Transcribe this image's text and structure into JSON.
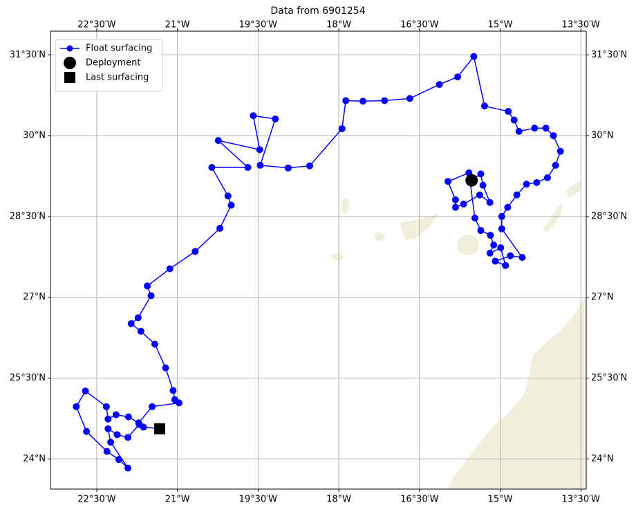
{
  "chart_data": {
    "type": "line",
    "title": "Data from 6901254",
    "xlim": [
      -23.36,
      -13.4
    ],
    "ylim": [
      23.44,
      31.94
    ],
    "xticks": [
      {
        "value": -22.5,
        "label": "22°30′W"
      },
      {
        "value": -21,
        "label": "21°W"
      },
      {
        "value": -19.5,
        "label": "19°30′W"
      },
      {
        "value": -18,
        "label": "18°W"
      },
      {
        "value": -16.5,
        "label": "16°30′W"
      },
      {
        "value": -15,
        "label": "15°W"
      },
      {
        "value": -13.5,
        "label": "13°30′W"
      }
    ],
    "yticks": [
      {
        "value": 24,
        "label": "24°N"
      },
      {
        "value": 25.5,
        "label": "25°30′N"
      },
      {
        "value": 27,
        "label": "27°N"
      },
      {
        "value": 28.5,
        "label": "28°30′N"
      },
      {
        "value": 30,
        "label": "30°N"
      },
      {
        "value": 31.5,
        "label": "31°30′N"
      }
    ],
    "grid": true,
    "legend": "upper left",
    "series": [
      {
        "name": "Float surfacing",
        "color": "#0000ff",
        "x": [
          -15.53,
          -15.36,
          -15.32,
          -15.19,
          -15.38,
          -15.68,
          -15.83,
          -15.83,
          -15.97,
          -15.58,
          -15.47,
          -15.36,
          -15.18,
          -15.12,
          -15.19,
          -14.99,
          -14.9,
          -15.09,
          -14.81,
          -14.59,
          -14.97,
          -14.97,
          -14.86,
          -14.69,
          -14.51,
          -14.32,
          -14.12,
          -13.97,
          -13.88,
          -14.01,
          -14.15,
          -14.36,
          -14.65,
          -14.74,
          -14.85,
          -15.29,
          -15.49,
          -15.79,
          -16.13,
          -16.68,
          -17.15,
          -17.55,
          -17.87,
          -17.94,
          -18.54,
          -18.94,
          -19.46,
          -19.18,
          -19.59,
          -19.47,
          -20.24,
          -19.69,
          -20.36,
          -20.06,
          -20.0,
          -20.21,
          -20.67,
          -21.14,
          -21.56,
          -21.49,
          -21.73,
          -21.86,
          -21.68,
          -21.42,
          -21.22,
          -21.08,
          -21.05,
          -20.97,
          -21.47,
          -21.72,
          -21.91,
          -22.14,
          -22.29,
          -22.32,
          -22.71,
          -22.88,
          -22.69,
          -22.31,
          -22.09,
          -21.92,
          -22.24,
          -22.29,
          -22.12,
          -21.92,
          -21.71,
          -21.63,
          -21.33
        ],
        "values": [
          29.17,
          29.29,
          29.08,
          28.76,
          28.9,
          28.73,
          28.67,
          28.81,
          29.15,
          29.31,
          28.47,
          28.24,
          28.15,
          27.97,
          27.82,
          27.92,
          27.59,
          27.67,
          27.77,
          27.74,
          28.27,
          28.5,
          28.67,
          28.9,
          29.1,
          29.13,
          29.22,
          29.45,
          29.71,
          30.0,
          30.14,
          30.14,
          30.08,
          30.29,
          30.45,
          30.55,
          31.47,
          31.09,
          30.95,
          30.69,
          30.65,
          30.64,
          30.65,
          30.13,
          29.44,
          29.4,
          29.45,
          30.31,
          30.37,
          29.74,
          29.91,
          29.41,
          29.41,
          28.88,
          28.71,
          28.28,
          27.85,
          27.53,
          27.21,
          27.03,
          26.62,
          26.51,
          26.37,
          26.13,
          25.69,
          25.27,
          25.1,
          25.04,
          24.97,
          24.67,
          24.78,
          24.82,
          24.74,
          24.97,
          25.26,
          24.97,
          24.51,
          24.14,
          23.99,
          23.83,
          24.31,
          24.56,
          24.45,
          24.4,
          24.64,
          24.59,
          24.56
        ]
      }
    ],
    "markers": [
      {
        "name": "Deployment",
        "x": -15.53,
        "y": 29.17,
        "color": "#000000",
        "shape": "circle"
      },
      {
        "name": "Last surfacing",
        "x": -21.33,
        "y": 24.56,
        "color": "#000000",
        "shape": "square"
      }
    ]
  }
}
